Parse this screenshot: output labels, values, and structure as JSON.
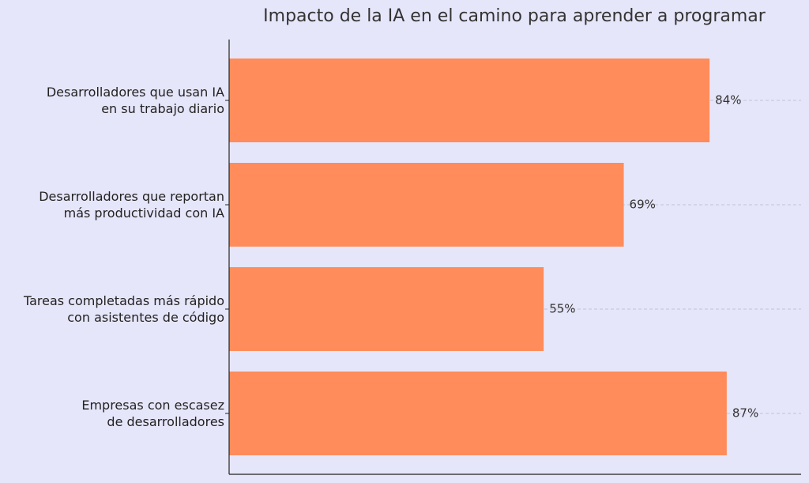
{
  "chart_data": {
    "type": "bar",
    "orientation": "horizontal",
    "title": "Impacto de la IA en el camino para aprender a programar",
    "categories": [
      "Desarrolladores que usan IA\nen su trabajo diario",
      "Desarrolladores que reportan\nmás productividad con IA",
      "Tareas completadas más rápido\ncon asistentes de código",
      "Empresas con escasez\nde desarrolladores"
    ],
    "values": [
      84,
      69,
      55,
      87
    ],
    "value_labels": [
      "84%",
      "69%",
      "55%",
      "87%"
    ],
    "color": "#ff8c5a",
    "xlim": [
      0,
      100
    ],
    "grid": true
  }
}
